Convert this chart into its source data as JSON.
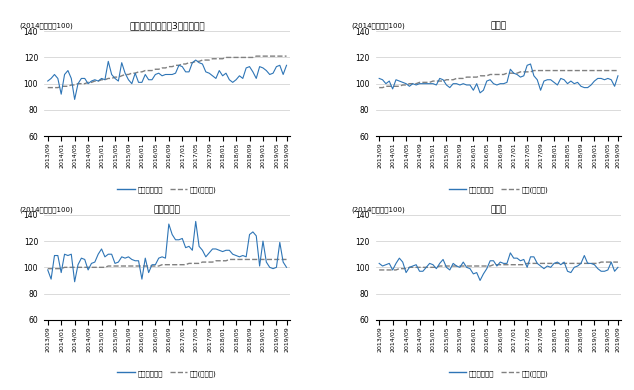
{
  "titles": [
    "東京都区部（都心3区を除く）",
    "横浜市",
    "さいたま市",
    "千葉市"
  ],
  "ylabel": "(2014年平均＝100)",
  "ylim": [
    60,
    140
  ],
  "yticks": [
    60,
    80,
    100,
    120,
    140
  ],
  "line_color": "#2E75B6",
  "land_color": "#808080",
  "legend_line": "中古戸建住宅",
  "legend_dash": "地価(住宅地)",
  "tokyo": {
    "house": [
      102,
      104,
      107,
      104,
      92,
      107,
      110,
      104,
      88,
      100,
      104,
      104,
      100,
      102,
      103,
      102,
      104,
      103,
      117,
      107,
      104,
      102,
      116,
      108,
      103,
      100,
      108,
      101,
      101,
      107,
      103,
      103,
      107,
      108,
      106,
      107,
      107,
      107,
      108,
      114,
      113,
      109,
      109,
      116,
      118,
      116,
      115,
      109,
      108,
      106,
      104,
      110,
      106,
      108,
      103,
      101,
      103,
      106,
      104,
      112,
      113,
      109,
      104,
      113,
      112,
      110,
      107,
      108,
      113,
      114,
      107,
      114
    ],
    "land": [
      97,
      97,
      97,
      97,
      98,
      98,
      98,
      99,
      99,
      100,
      100,
      100,
      101,
      101,
      102,
      102,
      103,
      103,
      104,
      104,
      105,
      105,
      106,
      107,
      107,
      108,
      108,
      109,
      109,
      110,
      110,
      110,
      111,
      111,
      112,
      112,
      113,
      113,
      114,
      114,
      115,
      115,
      116,
      116,
      117,
      117,
      118,
      118,
      118,
      119,
      119,
      119,
      119,
      120,
      120,
      120,
      120,
      120,
      120,
      120,
      120,
      120,
      121,
      121,
      121,
      121,
      121,
      121,
      121,
      121,
      121,
      121
    ]
  },
  "yokohama": {
    "house": [
      104,
      103,
      100,
      102,
      96,
      103,
      102,
      101,
      100,
      98,
      100,
      99,
      100,
      100,
      100,
      100,
      100,
      99,
      104,
      103,
      99,
      97,
      100,
      100,
      99,
      100,
      99,
      99,
      95,
      100,
      93,
      95,
      102,
      103,
      100,
      99,
      100,
      100,
      101,
      111,
      108,
      107,
      105,
      106,
      114,
      115,
      106,
      103,
      95,
      102,
      103,
      103,
      101,
      99,
      104,
      103,
      100,
      102,
      100,
      101,
      98,
      97,
      97,
      99,
      102,
      104,
      104,
      103,
      104,
      103,
      98,
      106
    ],
    "land": [
      97,
      97,
      98,
      98,
      98,
      98,
      98,
      99,
      99,
      100,
      100,
      100,
      101,
      101,
      101,
      101,
      102,
      102,
      102,
      102,
      103,
      103,
      103,
      104,
      104,
      104,
      105,
      105,
      105,
      105,
      106,
      106,
      106,
      107,
      107,
      107,
      107,
      107,
      108,
      108,
      108,
      108,
      109,
      109,
      109,
      109,
      110,
      110,
      110,
      110,
      110,
      110,
      110,
      110,
      110,
      110,
      110,
      110,
      110,
      110,
      110,
      110,
      110,
      110,
      110,
      110,
      110,
      110,
      110,
      110,
      110,
      110
    ]
  },
  "saitama": {
    "house": [
      98,
      91,
      109,
      109,
      96,
      110,
      109,
      110,
      89,
      102,
      107,
      106,
      98,
      103,
      104,
      110,
      114,
      108,
      110,
      110,
      103,
      104,
      108,
      107,
      108,
      106,
      105,
      105,
      91,
      107,
      96,
      102,
      102,
      107,
      108,
      107,
      133,
      125,
      121,
      121,
      122,
      115,
      116,
      113,
      135,
      116,
      113,
      108,
      111,
      114,
      114,
      113,
      112,
      113,
      113,
      110,
      109,
      108,
      109,
      108,
      125,
      127,
      124,
      101,
      120,
      104,
      100,
      99,
      100,
      119,
      104,
      100
    ],
    "land": [
      99,
      99,
      99,
      99,
      99,
      100,
      100,
      100,
      100,
      100,
      100,
      100,
      100,
      100,
      100,
      100,
      100,
      100,
      101,
      101,
      101,
      101,
      101,
      101,
      101,
      101,
      101,
      101,
      101,
      101,
      101,
      101,
      101,
      101,
      102,
      102,
      102,
      102,
      102,
      102,
      102,
      102,
      103,
      103,
      103,
      103,
      104,
      104,
      104,
      104,
      105,
      105,
      105,
      105,
      106,
      106,
      106,
      106,
      106,
      106,
      106,
      106,
      106,
      106,
      106,
      106,
      106,
      106,
      106,
      106,
      106,
      106
    ]
  },
  "chiba": {
    "house": [
      103,
      101,
      102,
      103,
      98,
      103,
      107,
      104,
      96,
      100,
      101,
      102,
      97,
      97,
      100,
      103,
      102,
      99,
      103,
      106,
      100,
      98,
      103,
      101,
      100,
      104,
      100,
      99,
      95,
      96,
      90,
      95,
      99,
      105,
      105,
      101,
      104,
      103,
      103,
      111,
      107,
      107,
      105,
      106,
      100,
      108,
      108,
      103,
      101,
      99,
      101,
      100,
      103,
      104,
      102,
      104,
      97,
      96,
      100,
      101,
      103,
      109,
      103,
      103,
      102,
      99,
      97,
      97,
      98,
      104,
      97,
      100
    ],
    "land": [
      98,
      98,
      98,
      98,
      98,
      98,
      99,
      99,
      99,
      100,
      100,
      100,
      100,
      100,
      100,
      100,
      100,
      100,
      101,
      101,
      101,
      101,
      101,
      101,
      101,
      101,
      101,
      101,
      101,
      101,
      101,
      101,
      101,
      101,
      102,
      102,
      102,
      102,
      102,
      102,
      102,
      102,
      102,
      102,
      103,
      103,
      103,
      103,
      103,
      103,
      103,
      103,
      103,
      103,
      103,
      103,
      103,
      103,
      103,
      103,
      103,
      103,
      103,
      103,
      103,
      103,
      104,
      104,
      104,
      104,
      104,
      104
    ]
  },
  "x_labels": [
    "2013/09",
    "2014/01",
    "2014/05",
    "2014/09",
    "2015/01",
    "2015/05",
    "2015/09",
    "2016/01",
    "2016/05",
    "2016/09",
    "2017/01",
    "2017/05",
    "2017/09",
    "2018/01",
    "2018/05",
    "2018/09",
    "2019/01",
    "2019/05",
    "2019/09"
  ],
  "x_tick_positions": [
    0,
    4,
    8,
    12,
    16,
    20,
    24,
    28,
    32,
    36,
    40,
    44,
    48,
    52,
    56,
    60,
    64,
    68,
    71
  ]
}
